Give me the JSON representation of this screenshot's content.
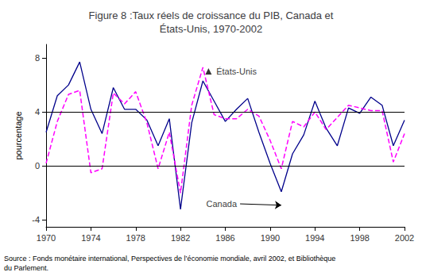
{
  "chart_data": {
    "type": "line",
    "title": "Figure 8 :Taux réels de croissance du PIB, Canada et\nÉtats-Unis, 1970-2002",
    "ylabel": "pourcentage",
    "x": [
      1970,
      1971,
      1972,
      1973,
      1974,
      1975,
      1976,
      1977,
      1978,
      1979,
      1980,
      1981,
      1982,
      1983,
      1984,
      1985,
      1986,
      1987,
      1988,
      1989,
      1990,
      1991,
      1992,
      1993,
      1994,
      1995,
      1996,
      1997,
      1998,
      1999,
      2000,
      2001,
      2002
    ],
    "xlim": [
      1970,
      2002
    ],
    "xticks": [
      1970,
      1974,
      1978,
      1982,
      1986,
      1990,
      1994,
      1998,
      2002
    ],
    "ylim": [
      -4.5,
      9.0
    ],
    "yticks": [
      -4,
      0,
      4,
      8
    ],
    "grid": false,
    "series": [
      {
        "color": "#00008B",
        "line_style": "solid",
        "values": [
          2.5,
          5.2,
          6.0,
          7.7,
          4.2,
          2.4,
          5.8,
          4.2,
          4.2,
          3.4,
          1.5,
          3.5,
          -3.2,
          3.2,
          6.3,
          4.8,
          3.3,
          4.2,
          5.0,
          2.5,
          0.2,
          -1.9,
          0.9,
          2.3,
          4.8,
          2.8,
          1.5,
          4.3,
          3.9,
          5.1,
          4.5,
          1.5,
          3.4
        ]
      },
      {
        "color": "#FF00FF",
        "line_style": "dashed",
        "values": [
          0.2,
          3.3,
          5.3,
          5.6,
          -0.5,
          -0.2,
          5.4,
          4.6,
          5.5,
          3.2,
          -0.2,
          2.5,
          -2.0,
          4.5,
          7.3,
          3.8,
          3.5,
          3.5,
          4.2,
          3.7,
          1.9,
          -0.2,
          3.3,
          2.9,
          4.0,
          2.7,
          3.6,
          4.5,
          4.3,
          4.1,
          4.1,
          0.3,
          2.4
        ]
      }
    ],
    "hlines": [
      0,
      4
    ],
    "annotations": [
      {
        "text": "Canada",
        "x": 1984.3,
        "y": -2.8,
        "arrow_x": 1991.0,
        "arrow_y": -2.9
      },
      {
        "text": "États-Unis",
        "x": 1985.2,
        "y": 7.0
      },
      {
        "marker": "triangle",
        "x": 1984.5,
        "y": 7.0
      }
    ],
    "source": "Source : Fonds monétaire international, Perspectives de l’économie mondiale, avril 2002, et Bibliothèque\ndu Parlement."
  }
}
